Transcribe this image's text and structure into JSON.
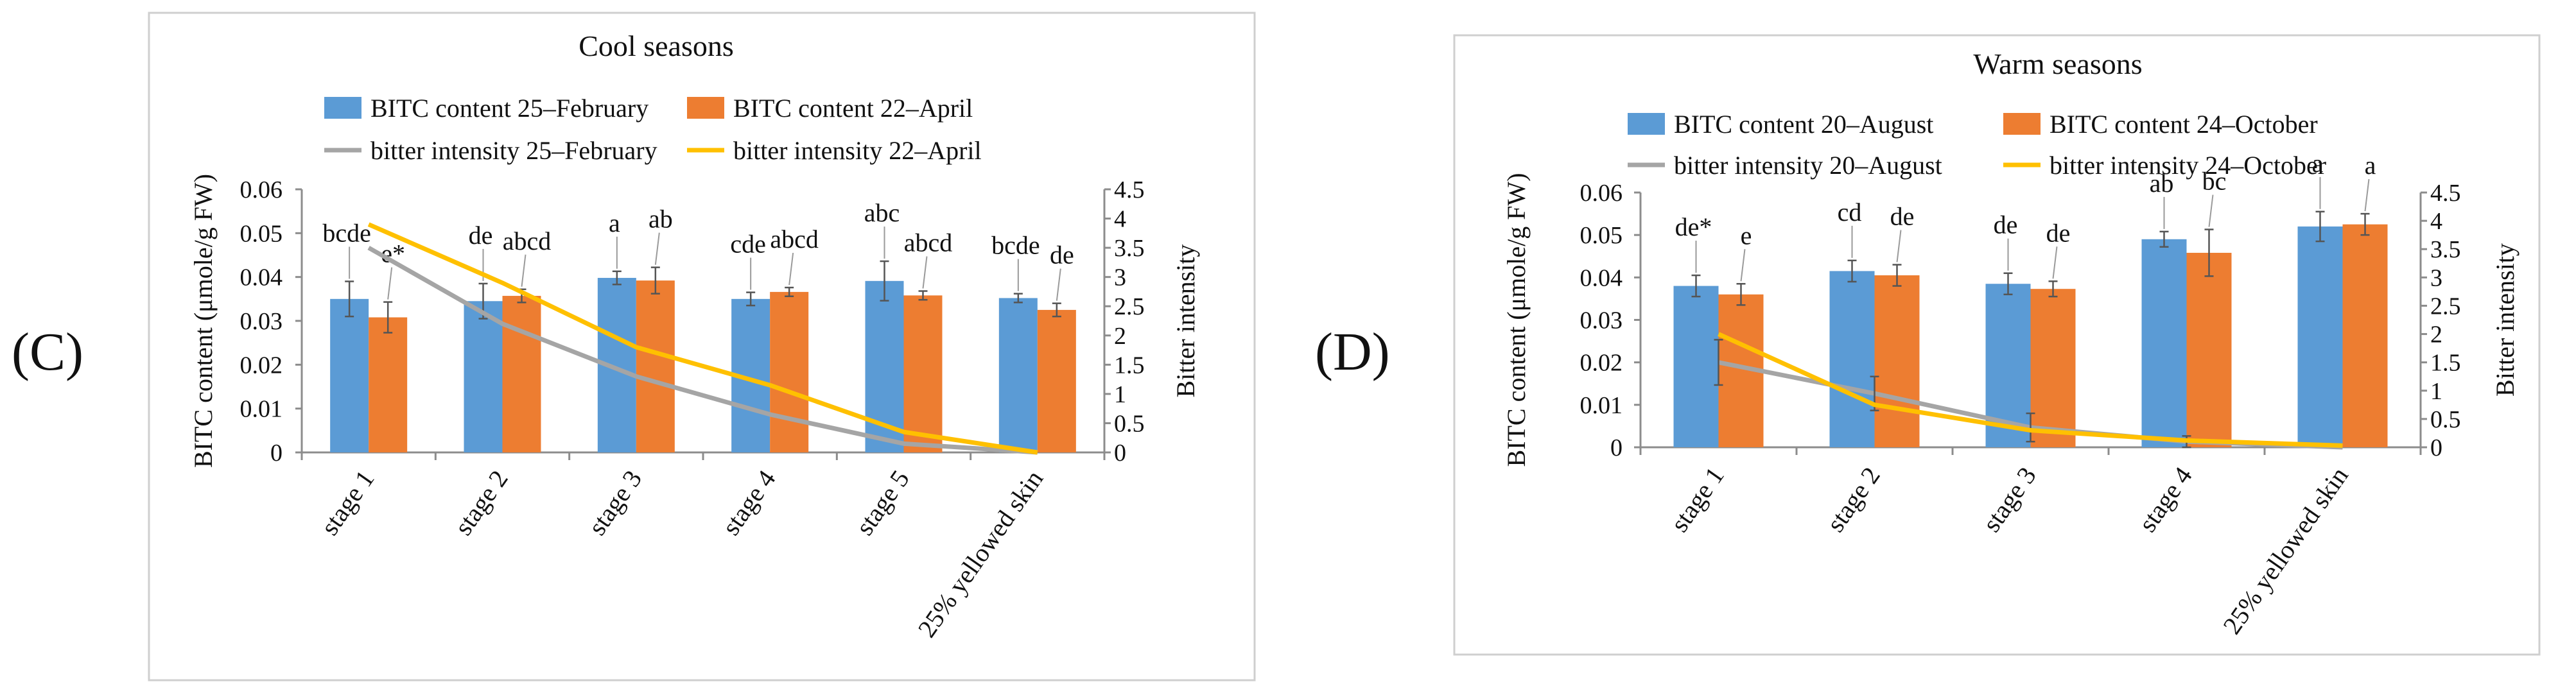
{
  "panel_labels": {
    "c": "(C)",
    "d": "(D)"
  },
  "colors": {
    "blue": "#5b9bd5",
    "orange": "#ed7d31",
    "gray": "#a5a5a5",
    "yellow": "#ffc000"
  },
  "chart_data": [
    {
      "id": "c",
      "type": "bar+line",
      "title": "Cool seasons",
      "ylabel": "BITC content (μmole/g FW)",
      "y2label": "Bitter intensity",
      "ylim": [
        0,
        0.06
      ],
      "y2lim": [
        0,
        4.5
      ],
      "yticks": [
        "0",
        "0.01",
        "0.02",
        "0.03",
        "0.04",
        "0.05",
        "0.06"
      ],
      "y2ticks": [
        "0",
        "0.5",
        "1",
        "1.5",
        "2",
        "2.5",
        "3",
        "3.5",
        "4",
        "4.5"
      ],
      "categories": [
        "stage 1",
        "stage 2",
        "stage 3",
        "stage 4",
        "stage 5",
        "25% yellowed skin"
      ],
      "bar_series": [
        {
          "name": "BITC content 25–February",
          "color": "#5b9bd5",
          "values": [
            0.035,
            0.0345,
            0.0398,
            0.035,
            0.0391,
            0.0352
          ],
          "errors": [
            0.004,
            0.004,
            0.0015,
            0.0015,
            0.0045,
            0.001
          ],
          "labels": [
            "bcde",
            "de",
            "a",
            "cde",
            "abc",
            "bcde"
          ]
        },
        {
          "name": "BITC content 22–April",
          "color": "#ed7d31",
          "values": [
            0.0308,
            0.0357,
            0.0392,
            0.0366,
            0.0358,
            0.0325
          ],
          "errors": [
            0.0035,
            0.0015,
            0.003,
            0.001,
            0.001,
            0.0015
          ],
          "labels": [
            "e*",
            "abcd",
            "ab",
            "abcd",
            "abcd",
            "de"
          ]
        }
      ],
      "line_series": [
        {
          "name": "bitter intensity 25–February",
          "color": "#a5a5a5",
          "values": [
            3.5,
            2.2,
            1.3,
            0.65,
            0.15,
            0.0
          ]
        },
        {
          "name": "bitter intensity 22–April",
          "color": "#ffc000",
          "values": [
            3.9,
            2.9,
            1.8,
            1.15,
            0.35,
            0.0
          ]
        }
      ],
      "legend_order": [
        {
          "kind": "bar",
          "series": 0
        },
        {
          "kind": "bar",
          "series": 1
        },
        {
          "kind": "line",
          "series": 0
        },
        {
          "kind": "line",
          "series": 1
        }
      ]
    },
    {
      "id": "d",
      "type": "bar+line",
      "title": "Warm seasons",
      "ylabel": "BITC content (μmole/g FW)",
      "y2label": "Bitter intensity",
      "ylim": [
        0,
        0.06
      ],
      "y2lim": [
        0,
        4.5
      ],
      "yticks": [
        "0",
        "0.01",
        "0.02",
        "0.03",
        "0.04",
        "0.05",
        "0.06"
      ],
      "y2ticks": [
        "0",
        "0.5",
        "1",
        "1.5",
        "2",
        "2.5",
        "3",
        "3.5",
        "4",
        "4.5"
      ],
      "categories": [
        "stage 1",
        "stage 2",
        "stage 3",
        "stage 4",
        "25% yellowed skin"
      ],
      "bar_series": [
        {
          "name": "BITC content 20–August",
          "color": "#5b9bd5",
          "values": [
            0.038,
            0.0415,
            0.0385,
            0.049,
            0.052
          ],
          "errors": [
            0.0025,
            0.0025,
            0.0025,
            0.0018,
            0.0035
          ],
          "labels": [
            "de*",
            "cd",
            "de",
            "ab",
            "a"
          ]
        },
        {
          "name": "BITC content 24–October",
          "color": "#ed7d31",
          "values": [
            0.036,
            0.0405,
            0.0373,
            0.0458,
            0.0525
          ],
          "errors": [
            0.0025,
            0.0025,
            0.0018,
            0.0055,
            0.0025
          ],
          "labels": [
            "e",
            "de",
            "de",
            "bc",
            "a"
          ]
        }
      ],
      "line_series": [
        {
          "name": "bitter intensity 20–August",
          "color": "#a5a5a5",
          "values": [
            1.5,
            0.95,
            0.35,
            0.1,
            0.0
          ],
          "errors": [
            0.4,
            0.3,
            0.25,
            0.1,
            0.0
          ]
        },
        {
          "name": "bitter intensity 24–October",
          "color": "#ffc000",
          "values": [
            2.0,
            0.75,
            0.3,
            0.12,
            0.03
          ]
        }
      ],
      "legend_order": [
        {
          "kind": "bar",
          "series": 0
        },
        {
          "kind": "bar",
          "series": 1
        },
        {
          "kind": "line",
          "series": 0
        },
        {
          "kind": "line",
          "series": 1
        }
      ]
    }
  ]
}
